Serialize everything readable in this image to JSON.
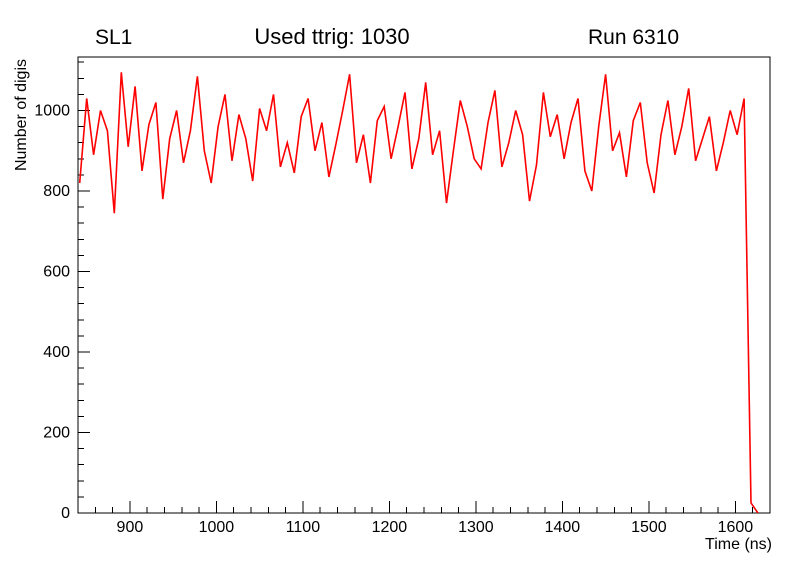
{
  "chart_data": {
    "type": "line",
    "titles": {
      "left": "SL1",
      "center": "Used ttrig: 1030",
      "right": "Run 6310"
    },
    "xlabel": "Time (ns)",
    "ylabel": "Number of digis",
    "xlim": [
      840,
      1640
    ],
    "ylim": [
      0,
      1133
    ],
    "x_major_ticks": [
      900,
      1000,
      1100,
      1200,
      1300,
      1400,
      1500,
      1600
    ],
    "x_minor_step": 20,
    "y_major_ticks": [
      0,
      200,
      400,
      600,
      800,
      1000
    ],
    "y_minor_step": 40,
    "line_color": "#ff0000",
    "frame_color": "#000000",
    "x_start": 842,
    "x_step": 8,
    "values": [
      820,
      1030,
      890,
      1000,
      950,
      745,
      1095,
      910,
      1060,
      850,
      965,
      1020,
      780,
      930,
      1000,
      870,
      950,
      1085,
      900,
      820,
      960,
      1040,
      875,
      990,
      930,
      825,
      1005,
      950,
      1040,
      860,
      920,
      845,
      985,
      1030,
      900,
      970,
      835,
      915,
      1000,
      1090,
      870,
      940,
      820,
      975,
      1010,
      880,
      960,
      1045,
      855,
      930,
      1070,
      890,
      950,
      770,
      900,
      1025,
      960,
      880,
      855,
      970,
      1050,
      860,
      920,
      1000,
      940,
      775,
      865,
      1045,
      935,
      990,
      880,
      970,
      1030,
      850,
      800,
      960,
      1090,
      900,
      945,
      835,
      975,
      1020,
      870,
      795,
      940,
      1025,
      890,
      960,
      1055,
      875,
      930,
      985,
      850,
      920,
      1000,
      940,
      1030,
      25,
      0
    ]
  }
}
